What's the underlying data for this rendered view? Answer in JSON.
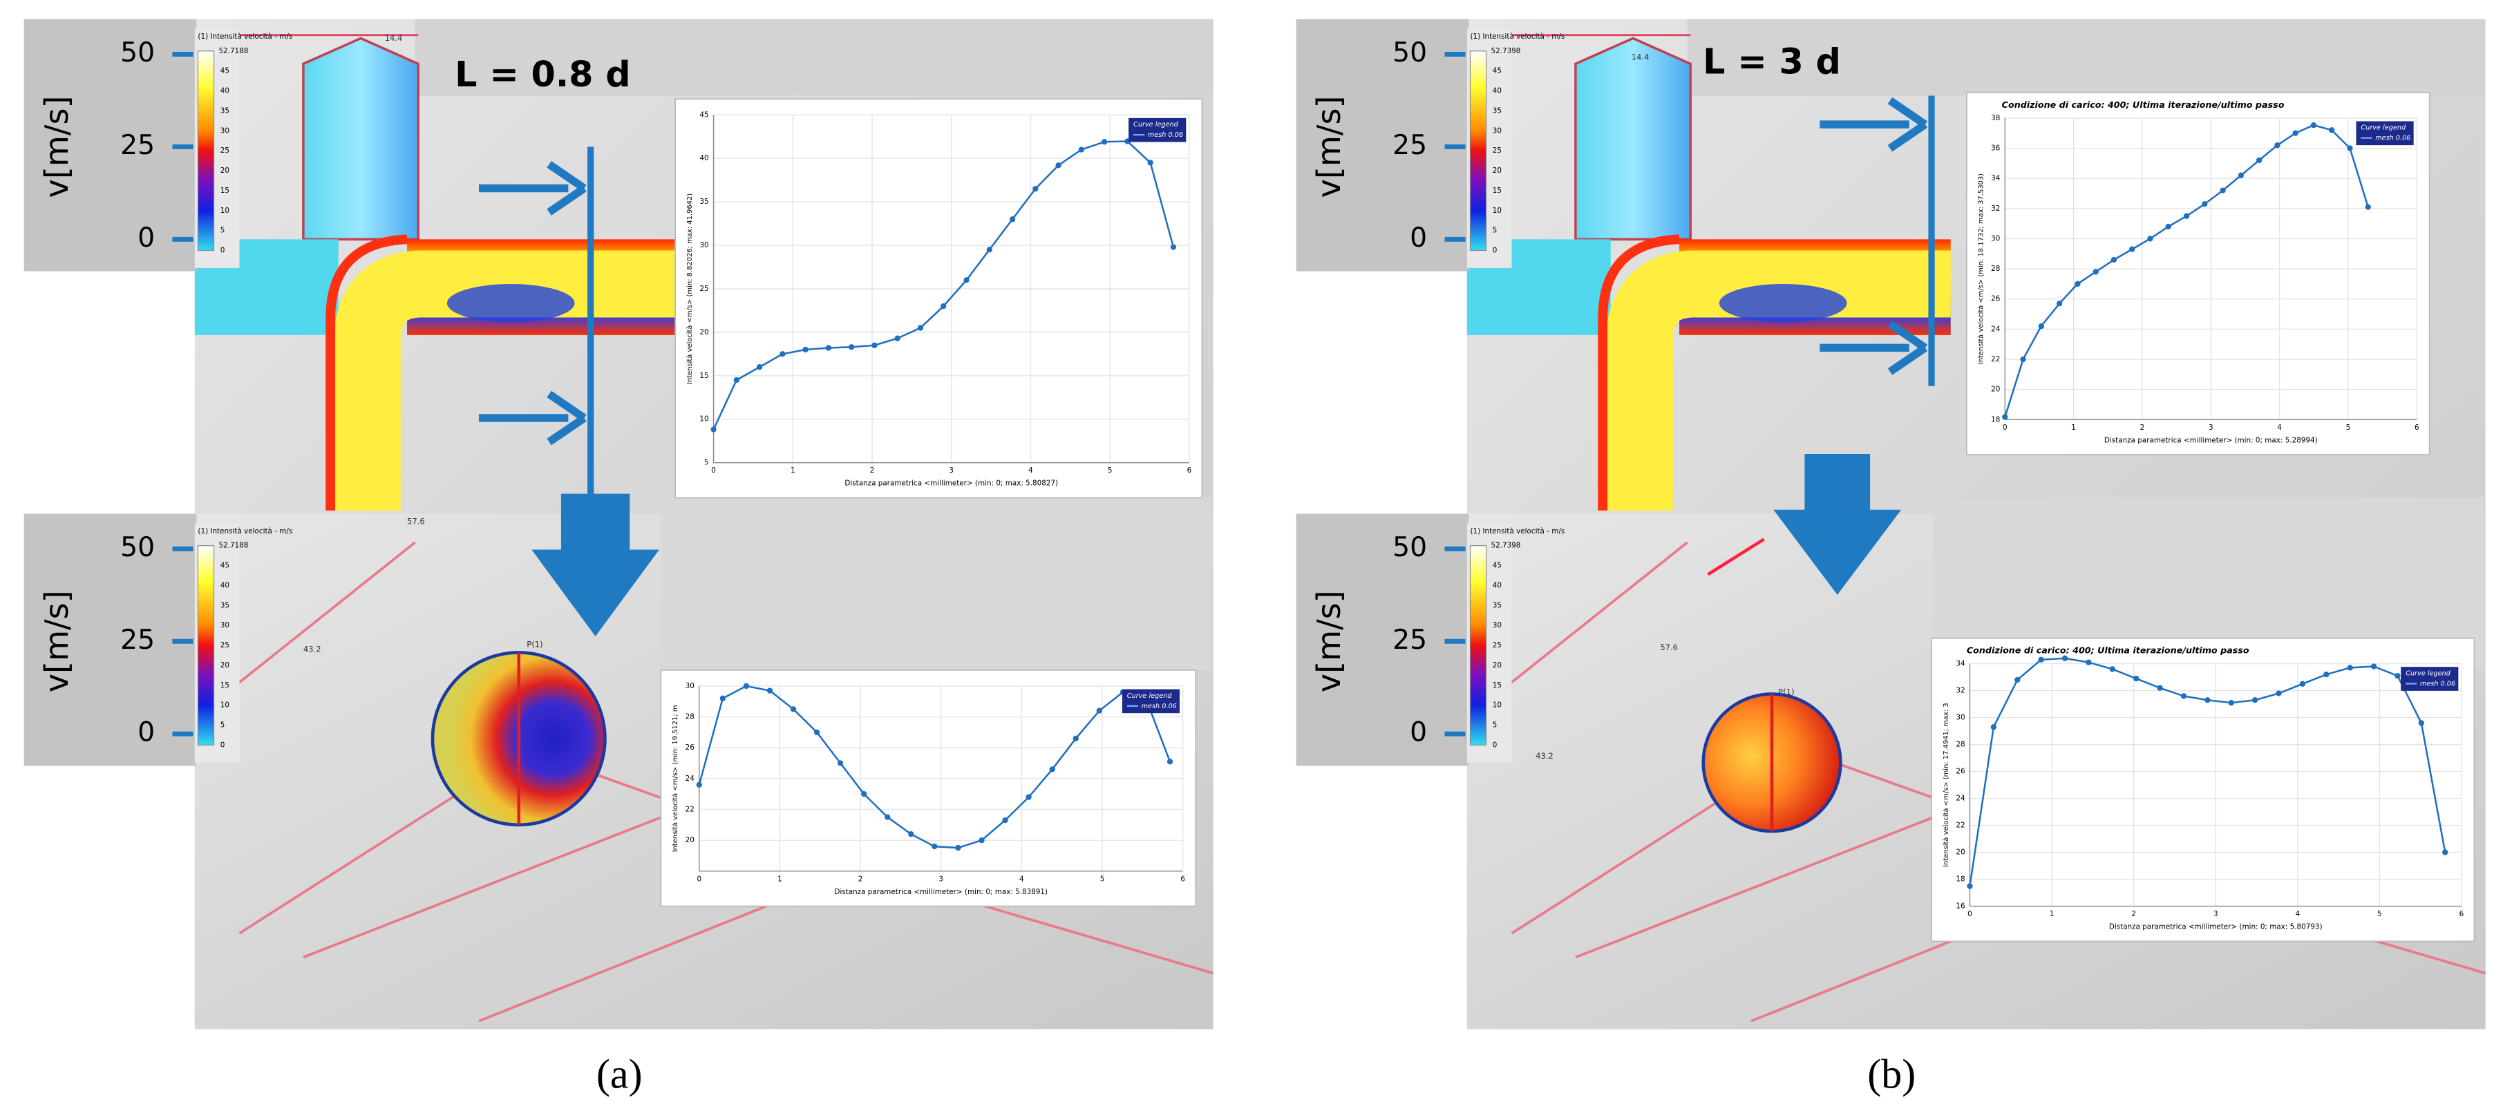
{
  "panels": [
    {
      "label": "(a)",
      "length_label": "L = 0.8 d",
      "views": [
        {
          "axis_title": "v[m/s]",
          "axis_ticks": [
            50,
            25,
            0
          ],
          "colorbar_title": "(1) Intensità velocità - m/s",
          "colorbar_max": "52.7188",
          "colorbar_ticks": [
            45,
            40,
            35,
            30,
            25,
            20,
            15,
            10,
            5,
            0
          ],
          "annotations": [
            "14.4"
          ]
        },
        {
          "axis_title": "v[m/s]",
          "axis_ticks": [
            50,
            25,
            0
          ],
          "colorbar_title": "(1) Intensità velocità - m/s",
          "colorbar_max": "52.7188",
          "colorbar_ticks": [
            45,
            40,
            35,
            30,
            25,
            20,
            15,
            10,
            5,
            0
          ],
          "annotations": [
            "57.6",
            "43.2",
            "P(1)"
          ]
        }
      ]
    },
    {
      "label": "(b)",
      "length_label": "L = 3 d",
      "views": [
        {
          "axis_title": "v[m/s]",
          "axis_ticks": [
            50,
            25,
            0
          ],
          "colorbar_title": "(1) Intensità velocità - m/s",
          "colorbar_max": "52.7398",
          "colorbar_ticks": [
            45,
            40,
            35,
            30,
            25,
            20,
            15,
            10,
            5,
            0
          ],
          "annotations": [
            "14.4"
          ]
        },
        {
          "axis_title": "v[m/s]",
          "axis_ticks": [
            50,
            25,
            0
          ],
          "colorbar_title": "(1) Intensità velocità - m/s",
          "colorbar_max": "52.7398",
          "colorbar_ticks": [
            45,
            40,
            35,
            30,
            25,
            20,
            15,
            10,
            5,
            0
          ],
          "annotations": [
            "57.6",
            "43.2",
            "P(1)"
          ]
        }
      ]
    }
  ],
  "chart_data": [
    {
      "type": "line",
      "x_label": "Distanza parametrica <millimeter> (min: 0; max: 5.80827)",
      "y_label": "Intensità velocità <m/s> (min: 8.82026; max: 41.9642)",
      "legend_title": "Curve legend",
      "x": [
        0,
        0.29,
        0.58,
        0.87,
        1.16,
        1.45,
        1.74,
        2.03,
        2.32,
        2.61,
        2.9,
        3.19,
        3.48,
        3.77,
        4.06,
        4.35,
        4.64,
        4.93,
        5.22,
        5.51,
        5.8
      ],
      "series": [
        {
          "name": "mesh 0.06",
          "color": "#1f6fc0",
          "values": [
            8.82,
            14.5,
            16,
            17.5,
            18,
            18.2,
            18.3,
            18.5,
            19.3,
            20.5,
            23,
            26,
            29.5,
            33,
            36.5,
            39.2,
            41,
            41.9,
            41.96,
            39.5,
            29.8
          ]
        }
      ],
      "xlim": [
        0,
        6
      ],
      "xticks": [
        0,
        1,
        2,
        3,
        4,
        5,
        6
      ],
      "ylim": [
        5,
        45
      ],
      "yticks": [
        5,
        10,
        15,
        20,
        25,
        30,
        35,
        40,
        45
      ],
      "grid": true
    },
    {
      "type": "line",
      "x_label": "Distanza parametrica <millimeter> (min: 0; max: 5.83891)",
      "y_label": "Intensità velocità <m/s> (min: 19.5121; m",
      "legend_title": "Curve legend",
      "x": [
        0,
        0.292,
        0.584,
        0.876,
        1.168,
        1.46,
        1.752,
        2.044,
        2.336,
        2.628,
        2.92,
        3.212,
        3.504,
        3.796,
        4.088,
        4.38,
        4.672,
        4.964,
        5.256,
        5.548,
        5.84
      ],
      "series": [
        {
          "name": "mesh 0.06",
          "color": "#1f6fc0",
          "values": [
            23.6,
            29.2,
            30,
            29.7,
            28.5,
            27,
            25,
            23,
            21.5,
            20.4,
            19.6,
            19.51,
            20,
            21.3,
            22.8,
            24.6,
            26.6,
            28.4,
            29.6,
            29.1,
            25.1
          ]
        }
      ],
      "xlim": [
        0,
        6
      ],
      "xticks": [
        0,
        1,
        2,
        3,
        4,
        5,
        6
      ],
      "ylim": [
        18,
        30
      ],
      "yticks": [
        20,
        22,
        24,
        26,
        28,
        30
      ],
      "grid": true
    },
    {
      "type": "line",
      "title": "Condizione di carico: 400; Ultima iterazione/ultimo passo",
      "x_label": "Distanza parametrica <millimeter> (min: 0; max: 5.28994)",
      "y_label": "Intensità velocità <m/s> (min: 18.1732; max: 37.5303)",
      "legend_title": "Curve legend",
      "x": [
        0,
        0.2645,
        0.529,
        0.7935,
        1.058,
        1.3225,
        1.587,
        1.8515,
        2.116,
        2.3805,
        2.645,
        2.9095,
        3.174,
        3.4385,
        3.703,
        3.9675,
        4.232,
        4.4965,
        4.761,
        5.0255,
        5.29
      ],
      "series": [
        {
          "name": "mesh 0.06",
          "color": "#1f6fc0",
          "values": [
            18.17,
            22,
            24.2,
            25.7,
            27,
            27.8,
            28.6,
            29.3,
            30,
            30.8,
            31.5,
            32.3,
            33.2,
            34.2,
            35.2,
            36.2,
            37,
            37.53,
            37.2,
            36,
            32.1
          ]
        }
      ],
      "xlim": [
        0,
        6
      ],
      "xticks": [
        0,
        1,
        2,
        3,
        4,
        5,
        6
      ],
      "ylim": [
        18,
        38
      ],
      "yticks": [
        18,
        20,
        22,
        24,
        26,
        28,
        30,
        32,
        34,
        36,
        38
      ],
      "grid": true
    },
    {
      "type": "line",
      "title": "Condizione di carico: 400; Ultima iterazione/ultimo passo",
      "x_label": "Distanza parametrica <millimeter> (min: 0; max: 5.80793)",
      "y_label": "Intensità velocità <m/s> (min: 17.4941; max: 3",
      "legend_title": "Curve legend",
      "x": [
        0,
        0.29,
        0.58,
        0.87,
        1.16,
        1.45,
        1.74,
        2.03,
        2.32,
        2.61,
        2.9,
        3.19,
        3.48,
        3.77,
        4.06,
        4.35,
        4.64,
        4.93,
        5.22,
        5.51,
        5.8
      ],
      "series": [
        {
          "name": "mesh 0.06",
          "color": "#1f6fc0",
          "values": [
            17.49,
            29.3,
            32.8,
            34.3,
            34.4,
            34.1,
            33.6,
            32.9,
            32.2,
            31.6,
            31.3,
            31.1,
            31.3,
            31.8,
            32.5,
            33.2,
            33.7,
            33.8,
            33.1,
            29.6,
            20
          ]
        }
      ],
      "xlim": [
        0,
        6
      ],
      "xticks": [
        0,
        1,
        2,
        3,
        4,
        5,
        6
      ],
      "ylim": [
        16,
        34
      ],
      "yticks": [
        16,
        18,
        20,
        22,
        24,
        26,
        28,
        30,
        32,
        34
      ],
      "grid": true
    }
  ]
}
